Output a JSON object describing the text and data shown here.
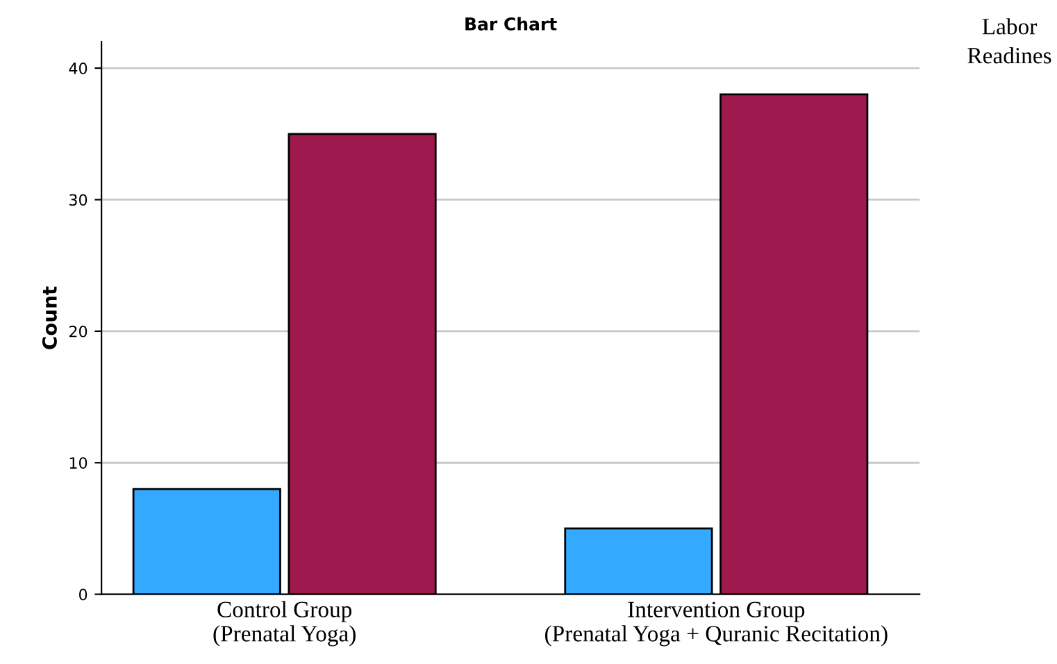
{
  "chart_data": {
    "type": "bar",
    "title": "Bar Chart",
    "ylabel": "Count",
    "legend_title": "Labor Readines",
    "categories": [
      "Control Group\n(Prenatal Yoga)",
      "Intervention Group\n(Prenatal Yoga + Quranic Recitation)"
    ],
    "series": [
      {
        "color": "#33aaff",
        "values": [
          8,
          5
        ]
      },
      {
        "color": "#9e1a4e",
        "values": [
          35,
          38
        ]
      }
    ],
    "ylim": [
      0,
      42
    ],
    "yticks": [
      0,
      10,
      20,
      30,
      40
    ],
    "grid": "y"
  }
}
